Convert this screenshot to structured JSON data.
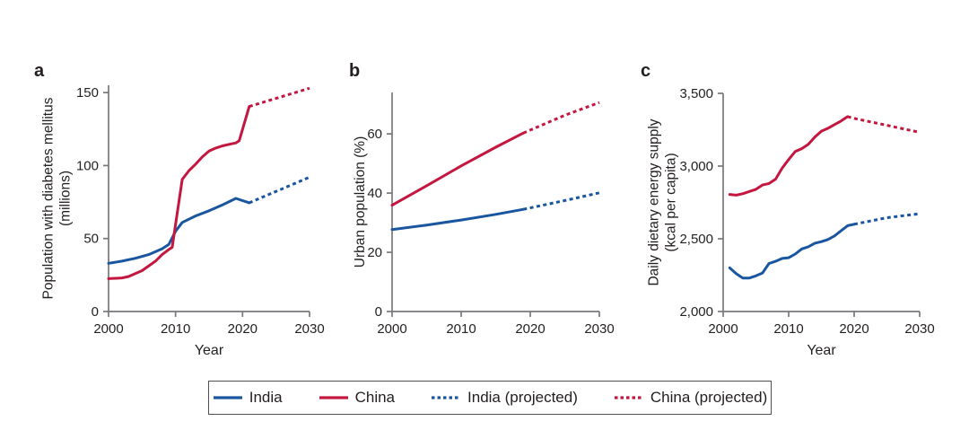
{
  "style": {
    "india_color": "#1a56a0",
    "china_color": "#c41740",
    "axis_color": "#77787b",
    "text_color": "#231f20",
    "background": "#ffffff",
    "legend_border": "#4f5054"
  },
  "chart_data": [
    {
      "type": "line",
      "letter": "a",
      "ylabel_lines": [
        "Population with diabetes mellitus",
        "(millions)"
      ],
      "xlabel": "Year",
      "xlim": [
        2000,
        2030
      ],
      "ylim": [
        0,
        155
      ],
      "grid": false,
      "xticks": [
        {
          "value": 2000,
          "label": "2000"
        },
        {
          "value": 2010,
          "label": "2010"
        },
        {
          "value": 2020,
          "label": "2020"
        },
        {
          "value": 2030,
          "label": "2030"
        }
      ],
      "yticks": [
        {
          "value": 0,
          "label": "0"
        },
        {
          "value": 50,
          "label": "50"
        },
        {
          "value": 100,
          "label": "100"
        },
        {
          "value": 150,
          "label": "150"
        }
      ],
      "series": [
        {
          "name": "India",
          "style": "solid",
          "color": "#1a56a0",
          "points": [
            [
              2000,
              33
            ],
            [
              2002,
              34.5
            ],
            [
              2004,
              36.5
            ],
            [
              2006,
              39
            ],
            [
              2008,
              43
            ],
            [
              2009,
              46
            ],
            [
              2010,
              55
            ],
            [
              2011,
              61
            ],
            [
              2013,
              65.5
            ],
            [
              2015,
              69
            ],
            [
              2017,
              73
            ],
            [
              2019,
              77.5
            ],
            [
              2021,
              74.5
            ]
          ]
        },
        {
          "name": "China",
          "style": "solid",
          "color": "#c41740",
          "points": [
            [
              2000,
              22.5
            ],
            [
              2002,
              23
            ],
            [
              2003,
              24
            ],
            [
              2005,
              28
            ],
            [
              2007,
              34.5
            ],
            [
              2008,
              39
            ],
            [
              2009,
              42.5
            ],
            [
              2009.5,
              44
            ],
            [
              2011,
              90.5
            ],
            [
              2012,
              96.5
            ],
            [
              2013,
              101
            ],
            [
              2014,
              106
            ],
            [
              2015,
              110
            ],
            [
              2016,
              112
            ],
            [
              2017,
              113.5
            ],
            [
              2018,
              114.5
            ],
            [
              2019,
              115.5
            ],
            [
              2019.5,
              117
            ],
            [
              2021,
              140.5
            ]
          ]
        },
        {
          "name": "India (projected)",
          "style": "dashed",
          "color": "#1a56a0",
          "points": [
            [
              2021,
              74.5
            ],
            [
              2030,
              92
            ]
          ]
        },
        {
          "name": "China (projected)",
          "style": "dashed",
          "color": "#c41740",
          "points": [
            [
              2021,
              140.5
            ],
            [
              2030,
              153
            ]
          ]
        }
      ]
    },
    {
      "type": "line",
      "letter": "b",
      "ylabel_lines": [
        "Urban population (%)"
      ],
      "xlabel": "",
      "xlim": [
        2000,
        2030
      ],
      "ylim": [
        0,
        74
      ],
      "grid": false,
      "xticks": [
        {
          "value": 2000,
          "label": "2000"
        },
        {
          "value": 2010,
          "label": "2010"
        },
        {
          "value": 2020,
          "label": "2020"
        },
        {
          "value": 2030,
          "label": "2030"
        }
      ],
      "yticks": [
        {
          "value": 0,
          "label": "0"
        },
        {
          "value": 20,
          "label": "20"
        },
        {
          "value": 40,
          "label": "40"
        },
        {
          "value": 60,
          "label": "60"
        }
      ],
      "series": [
        {
          "name": "India",
          "style": "solid",
          "color": "#1a56a0",
          "points": [
            [
              2000,
              27.7
            ],
            [
              2005,
              29.2
            ],
            [
              2010,
              30.9
            ],
            [
              2015,
              32.8
            ],
            [
              2019,
              34.5
            ]
          ]
        },
        {
          "name": "China",
          "style": "solid",
          "color": "#c41740",
          "points": [
            [
              2000,
              35.9
            ],
            [
              2005,
              42.5
            ],
            [
              2010,
              49.2
            ],
            [
              2015,
              55.5
            ],
            [
              2019,
              60.3
            ]
          ]
        },
        {
          "name": "India (projected)",
          "style": "dashed",
          "color": "#1a56a0",
          "points": [
            [
              2019,
              34.5
            ],
            [
              2025,
              37.5
            ],
            [
              2030,
              40.1
            ]
          ]
        },
        {
          "name": "China (projected)",
          "style": "dashed",
          "color": "#c41740",
          "points": [
            [
              2019,
              60.3
            ],
            [
              2025,
              66.3
            ],
            [
              2030,
              70.6
            ]
          ]
        }
      ]
    },
    {
      "type": "line",
      "letter": "c",
      "ylabel_lines": [
        "Daily dietary energy supply",
        "(kcal per capita)"
      ],
      "xlabel": "Year",
      "xlim": [
        2000,
        2030
      ],
      "ylim": [
        2000,
        3500
      ],
      "grid": false,
      "xticks": [
        {
          "value": 2000,
          "label": "2000"
        },
        {
          "value": 2010,
          "label": "2010"
        },
        {
          "value": 2020,
          "label": "2020"
        },
        {
          "value": 2030,
          "label": "2030"
        }
      ],
      "yticks": [
        {
          "value": 2000,
          "label": "2,000"
        },
        {
          "value": 2500,
          "label": "2,500"
        },
        {
          "value": 3000,
          "label": "3,000"
        },
        {
          "value": 3500,
          "label": "3,500"
        }
      ],
      "series": [
        {
          "name": "India",
          "style": "solid",
          "color": "#1a56a0",
          "points": [
            [
              2001,
              2300
            ],
            [
              2002,
              2260
            ],
            [
              2003,
              2230
            ],
            [
              2004,
              2230
            ],
            [
              2005,
              2245
            ],
            [
              2006,
              2265
            ],
            [
              2007,
              2330
            ],
            [
              2008,
              2345
            ],
            [
              2009,
              2365
            ],
            [
              2010,
              2370
            ],
            [
              2011,
              2395
            ],
            [
              2012,
              2430
            ],
            [
              2013,
              2445
            ],
            [
              2014,
              2470
            ],
            [
              2015,
              2480
            ],
            [
              2016,
              2495
            ],
            [
              2017,
              2520
            ],
            [
              2018,
              2555
            ],
            [
              2019,
              2590
            ],
            [
              2020,
              2600
            ]
          ]
        },
        {
          "name": "China",
          "style": "solid",
          "color": "#c41740",
          "points": [
            [
              2001,
              2805
            ],
            [
              2002,
              2800
            ],
            [
              2003,
              2810
            ],
            [
              2004,
              2825
            ],
            [
              2005,
              2840
            ],
            [
              2006,
              2870
            ],
            [
              2007,
              2880
            ],
            [
              2008,
              2910
            ],
            [
              2009,
              2985
            ],
            [
              2010,
              3045
            ],
            [
              2011,
              3100
            ],
            [
              2012,
              3120
            ],
            [
              2013,
              3150
            ],
            [
              2014,
              3200
            ],
            [
              2015,
              3240
            ],
            [
              2016,
              3260
            ],
            [
              2017,
              3285
            ],
            [
              2018,
              3310
            ],
            [
              2019,
              3340
            ]
          ]
        },
        {
          "name": "India (projected)",
          "style": "dashed",
          "color": "#1a56a0",
          "points": [
            [
              2020,
              2600
            ],
            [
              2025,
              2645
            ],
            [
              2030,
              2672
            ]
          ]
        },
        {
          "name": "China (projected)",
          "style": "dashed",
          "color": "#c41740",
          "points": [
            [
              2019,
              3340
            ],
            [
              2020,
              3328
            ],
            [
              2025,
              3280
            ],
            [
              2030,
              3232
            ]
          ]
        }
      ]
    }
  ],
  "legend": {
    "entries": [
      {
        "label": "India",
        "color": "#1a56a0",
        "dashed": false,
        "icon": "solid-blue-line-icon"
      },
      {
        "label": "China",
        "color": "#c41740",
        "dashed": false,
        "icon": "solid-red-line-icon"
      },
      {
        "label": "India (projected)",
        "color": "#1a56a0",
        "dashed": true,
        "icon": "dashed-blue-line-icon"
      },
      {
        "label": "China (projected)",
        "color": "#c41740",
        "dashed": true,
        "icon": "dashed-red-line-icon"
      }
    ]
  }
}
